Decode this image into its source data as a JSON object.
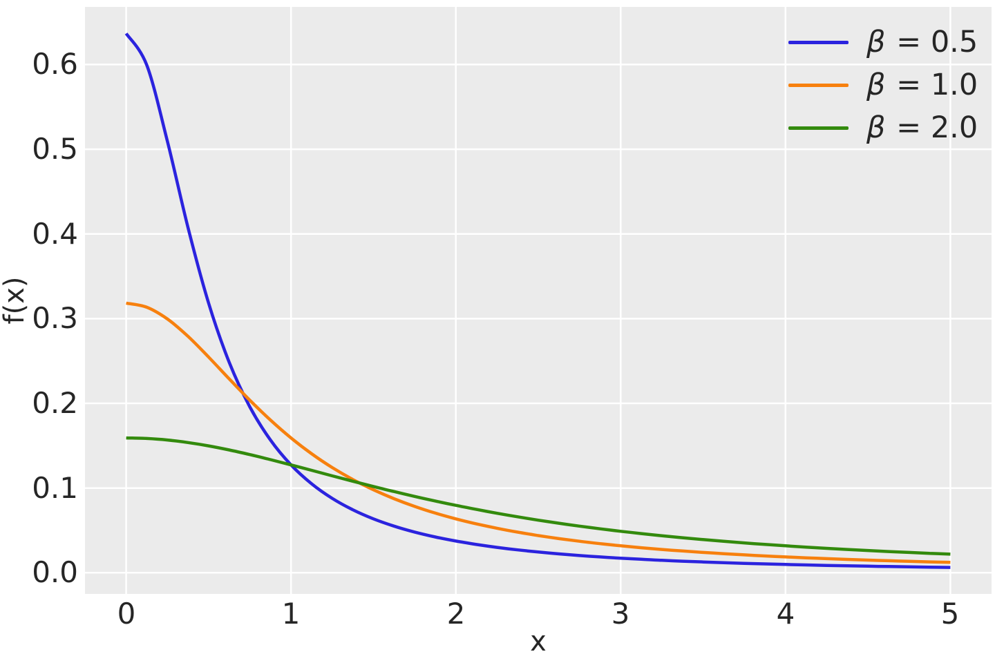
{
  "figure": {
    "background": "#ffffff",
    "plot_background": "#ebebeb",
    "grid_color": "#ffffff",
    "text_color": "#262626"
  },
  "chart_data": {
    "type": "line",
    "title": "",
    "xlabel": "x",
    "ylabel": "f(x)",
    "grid": true,
    "legend_position": "upper right",
    "xlim": [
      -0.25,
      5.25
    ],
    "ylim": [
      -0.025,
      0.668
    ],
    "x_ticks": [
      0,
      1,
      2,
      3,
      4,
      5
    ],
    "x_tick_labels": [
      "0",
      "1",
      "2",
      "3",
      "4",
      "5"
    ],
    "y_ticks": [
      0.0,
      0.1,
      0.2,
      0.3,
      0.4,
      0.5,
      0.6
    ],
    "y_tick_labels": [
      "0.0",
      "0.1",
      "0.2",
      "0.3",
      "0.4",
      "0.5",
      "0.6"
    ],
    "x": [
      0,
      0.125,
      0.25,
      0.375,
      0.5,
      0.625,
      0.75,
      0.875,
      1,
      1.125,
      1.25,
      1.375,
      1.5,
      1.625,
      1.75,
      1.875,
      2,
      2.125,
      2.25,
      2.375,
      2.5,
      2.625,
      2.75,
      2.875,
      3,
      3.125,
      3.25,
      3.375,
      3.5,
      3.625,
      3.75,
      3.875,
      4,
      4.125,
      4.25,
      4.375,
      4.5,
      4.625,
      4.75,
      4.875,
      5
    ],
    "series": [
      {
        "id": "beta-0.5",
        "name": "β = 0.5",
        "color": "#2b23de",
        "values": [
          0.63662,
          0.59917,
          0.5093,
          0.40744,
          0.31831,
          0.24844,
          0.19589,
          0.15671,
          0.12732,
          0.10501,
          0.08781,
          0.07435,
          0.06366,
          0.05506,
          0.04805,
          0.04226,
          0.03745,
          0.0334,
          0.02996,
          0.02702,
          0.02449,
          0.02229,
          0.02037,
          0.01869,
          0.01721,
          0.01589,
          0.01472,
          0.01367,
          0.01273,
          0.01189,
          0.01112,
          0.01043,
          0.00979,
          0.00922,
          0.00869,
          0.00821,
          0.00776,
          0.00735,
          0.00698,
          0.00663,
          0.0063
        ]
      },
      {
        "id": "beta-1.0",
        "name": "β = 1.0",
        "color": "#f7800e",
        "values": [
          0.31831,
          0.31341,
          0.29958,
          0.27907,
          0.25465,
          0.2289,
          0.20372,
          0.18028,
          0.15915,
          0.14049,
          0.12422,
          0.11012,
          0.09794,
          0.08743,
          0.07835,
          0.07049,
          0.06366,
          0.05771,
          0.05251,
          0.04793,
          0.04391,
          0.04034,
          0.03718,
          0.03435,
          0.03183,
          0.02957,
          0.02753,
          0.02569,
          0.02402,
          0.02251,
          0.02113,
          0.01987,
          0.01872,
          0.01767,
          0.0167,
          0.0158,
          0.01498,
          0.01422,
          0.01351,
          0.01285,
          0.01224
        ]
      },
      {
        "id": "beta-2.0",
        "name": "β = 2.0",
        "color": "#338a0d",
        "values": [
          0.15915,
          0.15854,
          0.15671,
          0.15375,
          0.14979,
          0.145,
          0.13953,
          0.13359,
          0.12732,
          0.1209,
          0.11445,
          0.10807,
          0.10186,
          0.09587,
          0.09014,
          0.0847,
          0.07958,
          0.07476,
          0.07024,
          0.06603,
          0.06211,
          0.05846,
          0.05506,
          0.0519,
          0.04897,
          0.04624,
          0.04371,
          0.04136,
          0.03918,
          0.03714,
          0.03524,
          0.03348,
          0.03183,
          0.03029,
          0.02885,
          0.02751,
          0.02625,
          0.02507,
          0.02397,
          0.02293,
          0.02195
        ]
      }
    ]
  }
}
